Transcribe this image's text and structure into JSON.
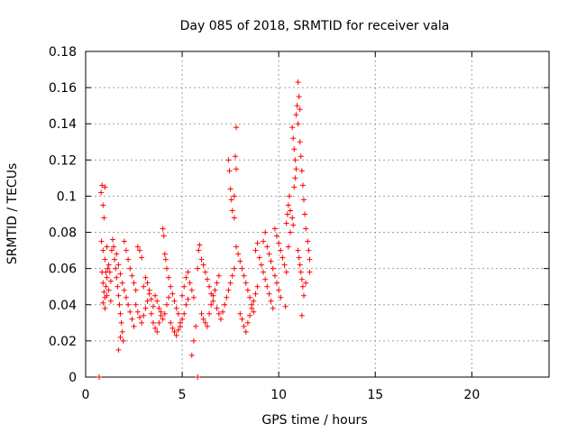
{
  "chart_data": {
    "type": "scatter",
    "title": "Day 085 of 2018, SRMTID for receiver vala",
    "xlabel": "GPS time / hours",
    "ylabel": "SRMTID / TECUs",
    "xlim": [
      0,
      24
    ],
    "ylim": [
      0,
      0.18
    ],
    "xticks": [
      0,
      5,
      10,
      15,
      20
    ],
    "xtick_labels": [
      "0",
      "5",
      "10",
      "15",
      "20"
    ],
    "yticks": [
      0,
      0.02,
      0.04,
      0.06,
      0.08,
      0.1,
      0.12,
      0.14,
      0.16,
      0.18
    ],
    "ytick_labels": [
      "0",
      "0.02",
      "0.04",
      "0.06",
      "0.08",
      "0.1",
      "0.12",
      "0.14",
      "0.16",
      "0.18"
    ],
    "grid": true,
    "marker": "+",
    "color": "#ff0000",
    "series": [
      {
        "name": "SRMTID",
        "points": [
          [
            0.8,
            0.102
          ],
          [
            0.85,
            0.106
          ],
          [
            0.9,
            0.095
          ],
          [
            0.95,
            0.088
          ],
          [
            1.0,
            0.105
          ],
          [
            0.82,
            0.075
          ],
          [
            0.9,
            0.07
          ],
          [
            1.0,
            0.065
          ],
          [
            1.05,
            0.058
          ],
          [
            1.1,
            0.072
          ],
          [
            0.85,
            0.058
          ],
          [
            0.9,
            0.052
          ],
          [
            0.95,
            0.047
          ],
          [
            1.0,
            0.044
          ],
          [
            1.05,
            0.05
          ],
          [
            1.1,
            0.055
          ],
          [
            1.15,
            0.06
          ],
          [
            1.2,
            0.062
          ],
          [
            1.25,
            0.058
          ],
          [
            1.3,
            0.053
          ],
          [
            0.9,
            0.041
          ],
          [
            1.0,
            0.038
          ],
          [
            1.1,
            0.045
          ],
          [
            1.2,
            0.048
          ],
          [
            1.3,
            0.042
          ],
          [
            1.35,
            0.07
          ],
          [
            1.4,
            0.076
          ],
          [
            1.45,
            0.072
          ],
          [
            1.5,
            0.065
          ],
          [
            1.55,
            0.06
          ],
          [
            1.6,
            0.055
          ],
          [
            1.65,
            0.05
          ],
          [
            1.7,
            0.045
          ],
          [
            1.75,
            0.04
          ],
          [
            1.8,
            0.035
          ],
          [
            1.85,
            0.03
          ],
          [
            1.9,
            0.025
          ],
          [
            1.95,
            0.02
          ],
          [
            1.7,
            0.015
          ],
          [
            1.8,
            0.022
          ],
          [
            1.6,
            0.068
          ],
          [
            1.7,
            0.062
          ],
          [
            1.8,
            0.057
          ],
          [
            1.9,
            0.052
          ],
          [
            2.0,
            0.048
          ],
          [
            2.1,
            0.044
          ],
          [
            2.2,
            0.04
          ],
          [
            2.3,
            0.036
          ],
          [
            2.4,
            0.032
          ],
          [
            2.5,
            0.028
          ],
          [
            2.0,
            0.075
          ],
          [
            2.1,
            0.07
          ],
          [
            2.2,
            0.065
          ],
          [
            2.3,
            0.06
          ],
          [
            2.4,
            0.056
          ],
          [
            2.5,
            0.052
          ],
          [
            2.6,
            0.048
          ],
          [
            2.7,
            0.072
          ],
          [
            2.8,
            0.07
          ],
          [
            2.9,
            0.066
          ],
          [
            2.6,
            0.04
          ],
          [
            2.7,
            0.036
          ],
          [
            2.8,
            0.033
          ],
          [
            2.9,
            0.03
          ],
          [
            3.0,
            0.034
          ],
          [
            3.1,
            0.038
          ],
          [
            3.2,
            0.042
          ],
          [
            3.3,
            0.046
          ],
          [
            3.4,
            0.043
          ],
          [
            3.5,
            0.039
          ],
          [
            3.0,
            0.05
          ],
          [
            3.1,
            0.055
          ],
          [
            3.2,
            0.052
          ],
          [
            3.3,
            0.048
          ],
          [
            3.4,
            0.035
          ],
          [
            3.5,
            0.03
          ],
          [
            3.6,
            0.027
          ],
          [
            3.7,
            0.025
          ],
          [
            3.8,
            0.03
          ],
          [
            3.9,
            0.034
          ],
          [
            3.6,
            0.045
          ],
          [
            3.7,
            0.042
          ],
          [
            3.8,
            0.038
          ],
          [
            3.9,
            0.036
          ],
          [
            4.0,
            0.032
          ],
          [
            4.1,
            0.035
          ],
          [
            4.2,
            0.04
          ],
          [
            4.3,
            0.044
          ],
          [
            4.0,
            0.082
          ],
          [
            4.05,
            0.078
          ],
          [
            4.1,
            0.068
          ],
          [
            4.15,
            0.065
          ],
          [
            4.2,
            0.06
          ],
          [
            4.3,
            0.055
          ],
          [
            4.4,
            0.05
          ],
          [
            4.5,
            0.046
          ],
          [
            4.6,
            0.042
          ],
          [
            4.7,
            0.038
          ],
          [
            4.8,
            0.035
          ],
          [
            4.9,
            0.03
          ],
          [
            4.4,
            0.03
          ],
          [
            4.5,
            0.027
          ],
          [
            4.6,
            0.025
          ],
          [
            4.7,
            0.023
          ],
          [
            4.8,
            0.026
          ],
          [
            4.9,
            0.028
          ],
          [
            5.0,
            0.032
          ],
          [
            5.1,
            0.035
          ],
          [
            5.2,
            0.04
          ],
          [
            5.3,
            0.043
          ],
          [
            5.0,
            0.045
          ],
          [
            5.1,
            0.05
          ],
          [
            5.2,
            0.055
          ],
          [
            5.3,
            0.058
          ],
          [
            5.4,
            0.052
          ],
          [
            5.5,
            0.048
          ],
          [
            5.6,
            0.044
          ],
          [
            5.5,
            0.012
          ],
          [
            5.6,
            0.02
          ],
          [
            5.7,
            0.028
          ],
          [
            5.8,
            0.06
          ],
          [
            5.9,
            0.073
          ],
          [
            5.85,
            0.07
          ],
          [
            6.0,
            0.065
          ],
          [
            6.1,
            0.062
          ],
          [
            6.2,
            0.058
          ],
          [
            6.3,
            0.054
          ],
          [
            6.4,
            0.05
          ],
          [
            6.5,
            0.046
          ],
          [
            6.6,
            0.042
          ],
          [
            6.0,
            0.035
          ],
          [
            6.1,
            0.032
          ],
          [
            6.2,
            0.03
          ],
          [
            6.3,
            0.028
          ],
          [
            6.4,
            0.035
          ],
          [
            6.5,
            0.04
          ],
          [
            6.6,
            0.045
          ],
          [
            6.7,
            0.048
          ],
          [
            6.8,
            0.052
          ],
          [
            6.9,
            0.056
          ],
          [
            6.8,
            0.038
          ],
          [
            6.9,
            0.035
          ],
          [
            7.0,
            0.032
          ],
          [
            7.1,
            0.036
          ],
          [
            7.2,
            0.04
          ],
          [
            7.3,
            0.044
          ],
          [
            7.4,
            0.048
          ],
          [
            7.5,
            0.052
          ],
          [
            7.6,
            0.056
          ],
          [
            7.7,
            0.06
          ],
          [
            7.4,
            0.12
          ],
          [
            7.45,
            0.114
          ],
          [
            7.5,
            0.104
          ],
          [
            7.55,
            0.098
          ],
          [
            7.6,
            0.092
          ],
          [
            7.7,
            0.088
          ],
          [
            7.8,
            0.138
          ],
          [
            7.75,
            0.122
          ],
          [
            7.8,
            0.115
          ],
          [
            7.7,
            0.1
          ],
          [
            7.8,
            0.072
          ],
          [
            7.9,
            0.068
          ],
          [
            8.0,
            0.064
          ],
          [
            8.1,
            0.06
          ],
          [
            8.2,
            0.056
          ],
          [
            8.3,
            0.052
          ],
          [
            8.4,
            0.048
          ],
          [
            8.5,
            0.044
          ],
          [
            8.6,
            0.04
          ],
          [
            8.7,
            0.036
          ],
          [
            8.0,
            0.035
          ],
          [
            8.1,
            0.032
          ],
          [
            8.2,
            0.028
          ],
          [
            8.3,
            0.025
          ],
          [
            8.4,
            0.03
          ],
          [
            8.5,
            0.034
          ],
          [
            8.6,
            0.038
          ],
          [
            8.7,
            0.042
          ],
          [
            8.8,
            0.046
          ],
          [
            8.9,
            0.05
          ],
          [
            8.8,
            0.07
          ],
          [
            8.9,
            0.074
          ],
          [
            9.0,
            0.066
          ],
          [
            9.1,
            0.062
          ],
          [
            9.2,
            0.058
          ],
          [
            9.3,
            0.054
          ],
          [
            9.4,
            0.05
          ],
          [
            9.5,
            0.046
          ],
          [
            9.6,
            0.042
          ],
          [
            9.7,
            0.038
          ],
          [
            9.2,
            0.075
          ],
          [
            9.3,
            0.08
          ],
          [
            9.4,
            0.072
          ],
          [
            9.5,
            0.068
          ],
          [
            9.6,
            0.064
          ],
          [
            9.7,
            0.06
          ],
          [
            9.8,
            0.056
          ],
          [
            9.9,
            0.052
          ],
          [
            10.0,
            0.048
          ],
          [
            10.1,
            0.044
          ],
          [
            9.8,
            0.082
          ],
          [
            9.9,
            0.078
          ],
          [
            10.0,
            0.074
          ],
          [
            10.1,
            0.07
          ],
          [
            10.2,
            0.066
          ],
          [
            10.3,
            0.062
          ],
          [
            10.35,
            0.039
          ],
          [
            10.4,
            0.058
          ],
          [
            10.5,
            0.072
          ],
          [
            10.6,
            0.08
          ],
          [
            10.4,
            0.085
          ],
          [
            10.45,
            0.09
          ],
          [
            10.5,
            0.095
          ],
          [
            10.55,
            0.1
          ],
          [
            10.6,
            0.092
          ],
          [
            10.7,
            0.088
          ],
          [
            10.75,
            0.084
          ],
          [
            10.8,
            0.105
          ],
          [
            10.85,
            0.11
          ],
          [
            10.9,
            0.115
          ],
          [
            10.7,
            0.138
          ],
          [
            10.75,
            0.132
          ],
          [
            10.8,
            0.126
          ],
          [
            10.85,
            0.12
          ],
          [
            10.9,
            0.145
          ],
          [
            10.95,
            0.15
          ],
          [
            11.0,
            0.163
          ],
          [
            11.05,
            0.155
          ],
          [
            11.1,
            0.148
          ],
          [
            11.0,
            0.14
          ],
          [
            11.1,
            0.13
          ],
          [
            11.15,
            0.122
          ],
          [
            11.2,
            0.114
          ],
          [
            11.25,
            0.106
          ],
          [
            11.3,
            0.098
          ],
          [
            11.35,
            0.09
          ],
          [
            11.4,
            0.082
          ],
          [
            11.2,
            0.034
          ],
          [
            11.3,
            0.045
          ],
          [
            11.4,
            0.052
          ],
          [
            11.0,
            0.07
          ],
          [
            11.05,
            0.066
          ],
          [
            11.1,
            0.062
          ],
          [
            11.15,
            0.058
          ],
          [
            11.2,
            0.054
          ],
          [
            11.25,
            0.05
          ],
          [
            11.5,
            0.075
          ],
          [
            11.55,
            0.07
          ],
          [
            11.6,
            0.065
          ],
          [
            11.6,
            0.058
          ],
          [
            0.7,
            0.0
          ],
          [
            5.8,
            0.0
          ]
        ]
      }
    ]
  }
}
